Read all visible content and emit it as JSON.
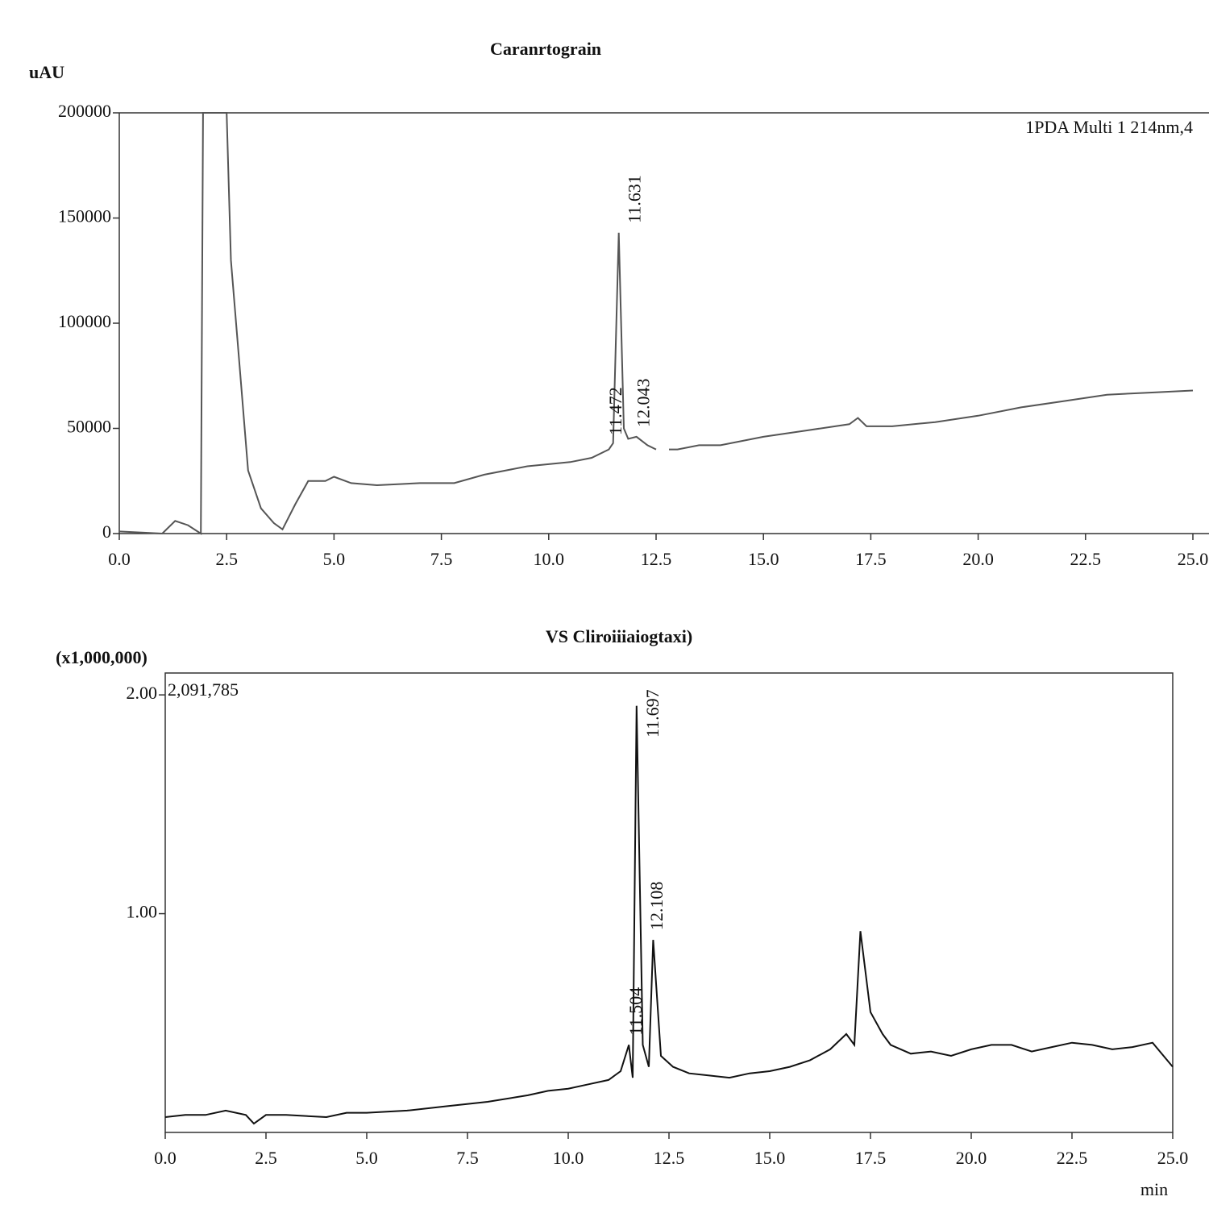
{
  "chart_data": [
    {
      "type": "line",
      "title": "Caranrtograin",
      "y_label": "uAU",
      "annotation": "1PDA Multi 1 214nm,4",
      "color": "#555555",
      "x": [
        0,
        1.0,
        1.3,
        1.6,
        1.9,
        1.95,
        2.5,
        2.6,
        2.8,
        3.0,
        3.3,
        3.6,
        3.8,
        4.1,
        4.4,
        4.8,
        5.0,
        5.4,
        6.0,
        7.0,
        7.8,
        8.5,
        9.5,
        10.5,
        11.0,
        11.4,
        11.5,
        11.631,
        11.75,
        11.85,
        12.043,
        12.3,
        12.5,
        12.6,
        12.8,
        13.0,
        13.5,
        14.0,
        15.0,
        16.0,
        17.0,
        17.2,
        17.4,
        18.0,
        19.0,
        20.0,
        21.0,
        22.0,
        23.0,
        24.0,
        25.0
      ],
      "values": [
        1000,
        0,
        6000,
        4000,
        0,
        200000,
        200000,
        130000,
        80000,
        30000,
        12000,
        5000,
        2000,
        14000,
        25000,
        25000,
        27000,
        24000,
        23000,
        24000,
        24000,
        28000,
        32000,
        34000,
        36000,
        40000,
        43000,
        143000,
        50000,
        45000,
        46000,
        42000,
        40000,
        null,
        40000,
        40000,
        42000,
        42000,
        46000,
        49000,
        52000,
        55000,
        51000,
        51000,
        53000,
        56000,
        60000,
        63000,
        66000,
        67000,
        68000
      ],
      "peaks": [
        11.631,
        11.472,
        12.043
      ],
      "xlim": [
        0,
        25
      ],
      "ylim": [
        0,
        200000
      ],
      "xticks": [
        {
          "value": 0,
          "label": "0.0"
        },
        2.5,
        {
          "value": 5,
          "label": "5.0"
        },
        7.5,
        {
          "value": 10,
          "label": "10.0"
        },
        12.5,
        {
          "value": 15,
          "label": "15.0"
        },
        17.5,
        {
          "value": 20,
          "label": "20.0"
        },
        22.5,
        {
          "value": 25,
          "label": "25.0"
        }
      ],
      "yticks": [
        0,
        50000,
        100000,
        150000,
        200000
      ]
    },
    {
      "type": "line",
      "title": "VS Cliroiiiaiogtaxi)",
      "y_label": "(x1,000,000)",
      "annotation": "2,091,785",
      "x_label": "min",
      "color": "#111111",
      "x": [
        0,
        0.5,
        1.0,
        1.5,
        2.0,
        2.2,
        2.5,
        3.0,
        4.0,
        4.5,
        5.0,
        6.0,
        7.0,
        8.0,
        9.0,
        9.5,
        10.0,
        10.5,
        11.0,
        11.3,
        11.504,
        11.6,
        11.697,
        11.85,
        12.0,
        12.108,
        12.3,
        12.6,
        13.0,
        13.5,
        14.0,
        14.5,
        15.0,
        15.5,
        16.0,
        16.5,
        16.9,
        17.1,
        17.25,
        17.5,
        17.8,
        18.0,
        18.5,
        19.0,
        19.5,
        20.0,
        20.5,
        21.0,
        21.5,
        22.0,
        22.5,
        23.0,
        23.5,
        24.0,
        24.5,
        25.0
      ],
      "values": [
        0.07,
        0.08,
        0.08,
        0.1,
        0.08,
        0.04,
        0.08,
        0.08,
        0.07,
        0.09,
        0.09,
        0.1,
        0.12,
        0.14,
        0.17,
        0.19,
        0.2,
        0.22,
        0.24,
        0.28,
        0.4,
        0.25,
        1.95,
        0.4,
        0.3,
        0.88,
        0.35,
        0.3,
        0.27,
        0.26,
        0.25,
        0.27,
        0.28,
        0.3,
        0.33,
        0.38,
        0.45,
        0.4,
        0.92,
        0.55,
        0.45,
        0.4,
        0.36,
        0.37,
        0.35,
        0.38,
        0.4,
        0.4,
        0.37,
        0.39,
        0.41,
        0.4,
        0.38,
        0.39,
        0.41,
        0.3
      ],
      "peaks": [
        11.697,
        12.108,
        11.504
      ],
      "xlim": [
        0,
        25
      ],
      "ylim": [
        0,
        2.1
      ],
      "xticks": [
        {
          "value": 0,
          "label": "0.0"
        },
        2.5,
        {
          "value": 5,
          "label": "5.0"
        },
        7.5,
        {
          "value": 10,
          "label": "10.0"
        },
        12.5,
        {
          "value": 15,
          "label": "15.0"
        },
        17.5,
        {
          "value": 20,
          "label": "20.0"
        },
        22.5,
        {
          "value": 25,
          "label": "25.0"
        }
      ],
      "yticks": [
        {
          "value": 1,
          "label": "1.00"
        },
        {
          "value": 2,
          "label": "2.00"
        }
      ]
    }
  ]
}
